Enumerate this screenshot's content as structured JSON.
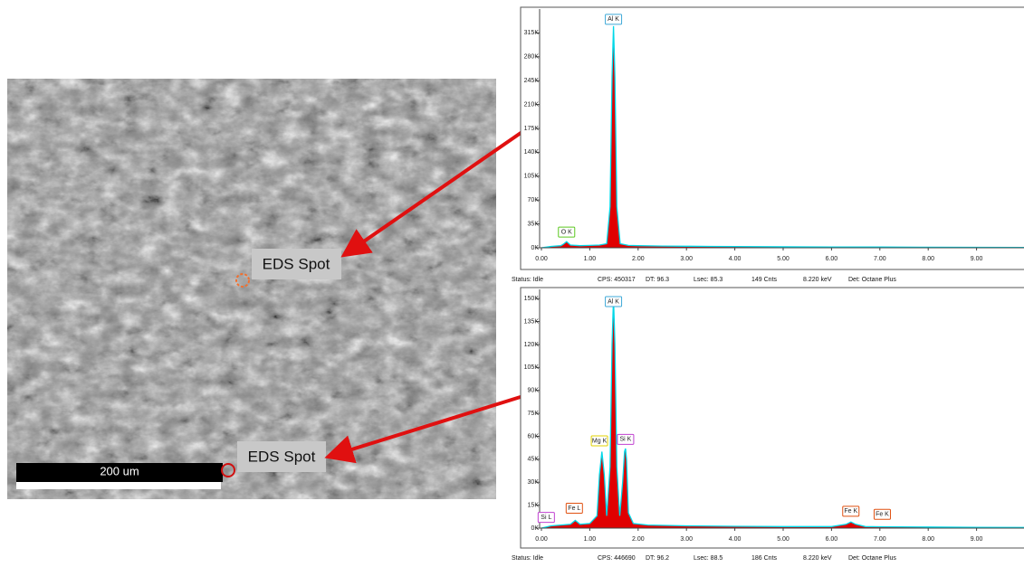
{
  "image": {
    "scale_bar": "200 um",
    "spot_labels": [
      "EDS Spot",
      "EDS Spot"
    ]
  },
  "chart_data": [
    {
      "type": "line",
      "line_color": "#00d8e8",
      "fill_color": "#e00000",
      "xlim": [
        0,
        10
      ],
      "ylim": [
        0,
        350000
      ],
      "xticks": [
        {
          "value": 0,
          "label": "0.00"
        },
        {
          "value": 1,
          "label": "1.00"
        },
        {
          "value": 2,
          "label": "2.00"
        },
        {
          "value": 3,
          "label": "3.00"
        },
        {
          "value": 4,
          "label": "4.00"
        },
        {
          "value": 5,
          "label": "5.00"
        },
        {
          "value": 6,
          "label": "6.00"
        },
        {
          "value": 7,
          "label": "7.00"
        },
        {
          "value": 8,
          "label": "8.00"
        },
        {
          "value": 9,
          "label": "9.00"
        }
      ],
      "yticks": [
        {
          "value": 0,
          "label": "0K"
        },
        {
          "value": 35000,
          "label": "35K"
        },
        {
          "value": 70000,
          "label": "70K"
        },
        {
          "value": 105000,
          "label": "105K"
        },
        {
          "value": 140000,
          "label": "140K"
        },
        {
          "value": 175000,
          "label": "175K"
        },
        {
          "value": 210000,
          "label": "210K"
        },
        {
          "value": 245000,
          "label": "245K"
        },
        {
          "value": 280000,
          "label": "280K"
        },
        {
          "value": 315000,
          "label": "315K"
        }
      ],
      "x": [
        0,
        0.2,
        0.4,
        0.45,
        0.52,
        0.6,
        0.8,
        1.0,
        1.2,
        1.35,
        1.42,
        1.46,
        1.49,
        1.52,
        1.56,
        1.63,
        1.8,
        2.0,
        2.5,
        3.0,
        3.5,
        4,
        5,
        6,
        7,
        8,
        9,
        10
      ],
      "values": [
        0,
        2000,
        3000,
        5000,
        9000,
        4000,
        3000,
        3500,
        4000,
        6000,
        60000,
        250000,
        325000,
        250000,
        60000,
        6000,
        3500,
        3000,
        2500,
        2200,
        2000,
        1800,
        1500,
        1200,
        1000,
        800,
        600,
        500
      ],
      "annotations": [
        {
          "text": "Al K",
          "x": 1.49,
          "y": 335000,
          "color": "#3fa9d8"
        },
        {
          "text": "O K",
          "x": 0.52,
          "y": 23000,
          "color": "#5cc820"
        }
      ],
      "status": [
        "Status: Idle",
        "CPS: 450317",
        "DT: 96.3",
        "Lsec: 85.3",
        "149 Cnts",
        "8.220 keV",
        "Det: Octane Plus"
      ]
    },
    {
      "type": "line",
      "line_color": "#00d8e8",
      "fill_color": "#e00000",
      "xlim": [
        0,
        10
      ],
      "ylim": [
        0,
        156000
      ],
      "xticks": [
        {
          "value": 0,
          "label": "0.00"
        },
        {
          "value": 1,
          "label": "1.00"
        },
        {
          "value": 2,
          "label": "2.00"
        },
        {
          "value": 3,
          "label": "3.00"
        },
        {
          "value": 4,
          "label": "4.00"
        },
        {
          "value": 5,
          "label": "5.00"
        },
        {
          "value": 6,
          "label": "6.00"
        },
        {
          "value": 7,
          "label": "7.00"
        },
        {
          "value": 8,
          "label": "8.00"
        },
        {
          "value": 9,
          "label": "9.00"
        }
      ],
      "yticks": [
        {
          "value": 0,
          "label": "0K"
        },
        {
          "value": 15000,
          "label": "15K"
        },
        {
          "value": 30000,
          "label": "30K"
        },
        {
          "value": 45000,
          "label": "45K"
        },
        {
          "value": 60000,
          "label": "60K"
        },
        {
          "value": 75000,
          "label": "75K"
        },
        {
          "value": 90000,
          "label": "90K"
        },
        {
          "value": 105000,
          "label": "105K"
        },
        {
          "value": 120000,
          "label": "120K"
        },
        {
          "value": 135000,
          "label": "135K"
        },
        {
          "value": 150000,
          "label": "150K"
        }
      ],
      "x": [
        0,
        0.2,
        0.4,
        0.6,
        0.7,
        0.8,
        1.0,
        1.15,
        1.2,
        1.25,
        1.3,
        1.35,
        1.42,
        1.46,
        1.49,
        1.52,
        1.56,
        1.62,
        1.68,
        1.72,
        1.74,
        1.76,
        1.8,
        1.9,
        2.2,
        3,
        4,
        5,
        6,
        6.3,
        6.4,
        6.5,
        6.7,
        7,
        8,
        9,
        10
      ],
      "values": [
        0,
        1500,
        2000,
        2500,
        5000,
        2500,
        3000,
        8000,
        35000,
        50000,
        35000,
        8000,
        40000,
        120000,
        150000,
        120000,
        40000,
        8000,
        30000,
        50000,
        52000,
        45000,
        10000,
        3000,
        2000,
        1500,
        1200,
        1000,
        1000,
        2500,
        4000,
        2500,
        1000,
        900,
        700,
        500,
        400
      ],
      "annotations": [
        {
          "text": "Al K",
          "x": 1.49,
          "y": 148000,
          "color": "#3fa9d8"
        },
        {
          "text": "Mg K",
          "x": 1.2,
          "y": 57000,
          "color": "#e0d000"
        },
        {
          "text": "Si K",
          "x": 1.74,
          "y": 58000,
          "color": "#c040d0"
        },
        {
          "text": "Fe L",
          "x": 0.68,
          "y": 13000,
          "color": "#e05010"
        },
        {
          "text": "Si L",
          "x": 0.1,
          "y": 7000,
          "color": "#c040d0"
        },
        {
          "text": "Fe K",
          "x": 6.4,
          "y": 11000,
          "color": "#e05010"
        },
        {
          "text": "Fe K",
          "x": 7.05,
          "y": 9000,
          "color": "#e05010"
        }
      ],
      "status": [
        "Status: Idle",
        "CPS: 446690",
        "DT: 96.2",
        "Lsec: 88.5",
        "186 Cnts",
        "8.220 keV",
        "Det: Octane Plus"
      ]
    }
  ]
}
